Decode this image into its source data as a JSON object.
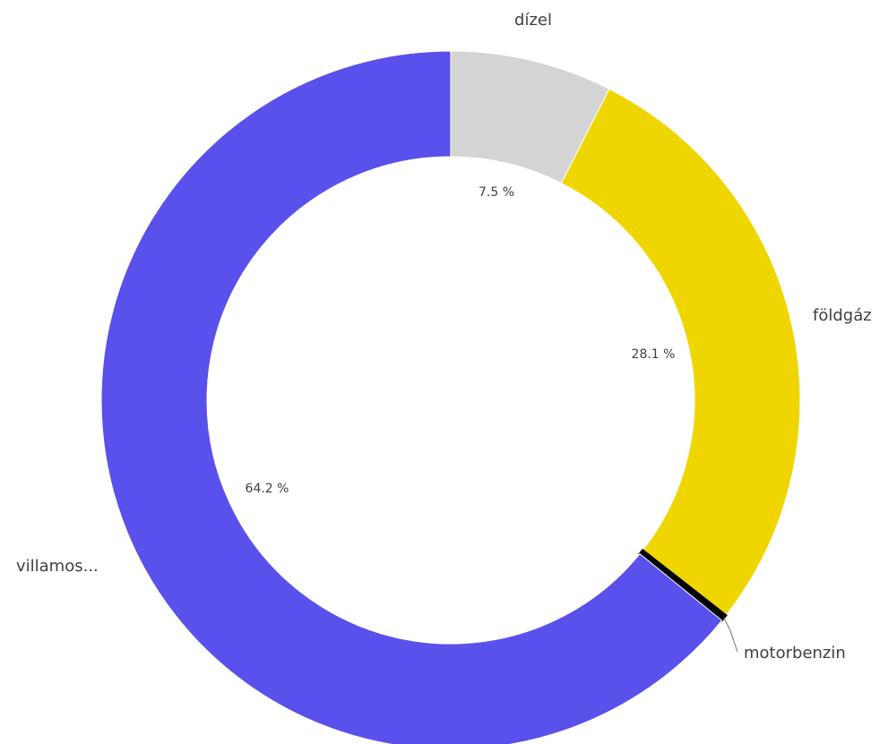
{
  "chart_data": {
    "type": "pie",
    "style": "donut",
    "slices": [
      {
        "label": "dízel",
        "value": 7.5,
        "value_label": "7.5 %",
        "color": "#d4d4d4"
      },
      {
        "label": "földgáz",
        "value": 28.1,
        "value_label": "28.1 %",
        "color": "#f0d600"
      },
      {
        "label": "motorbenzin",
        "value": 0.3,
        "value_label": "",
        "color": "#000000"
      },
      {
        "label": "villamos...",
        "value": 64.2,
        "value_label": "64.2 %",
        "color": "#5a50eb"
      }
    ]
  }
}
